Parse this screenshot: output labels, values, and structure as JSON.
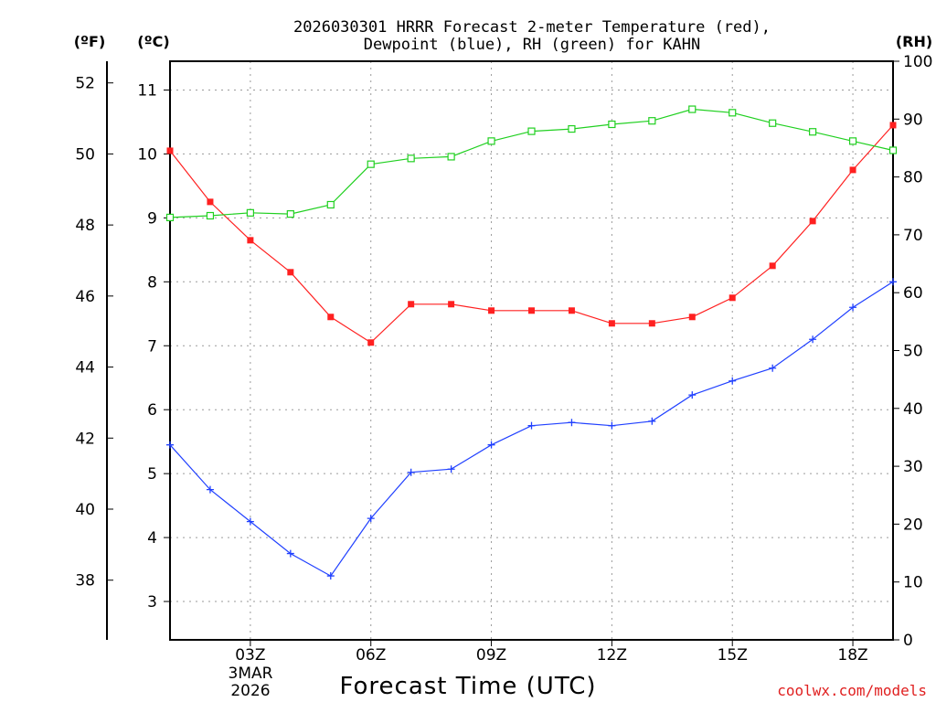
{
  "chart_data": {
    "type": "line",
    "title_line1": "2026030301 HRRR Forecast 2-meter Temperature (red),",
    "title_line2": "Dewpoint (blue), RH (green) for KAHN",
    "xlabel": "Forecast Time (UTC)",
    "x_hours": [
      1,
      2,
      3,
      4,
      5,
      6,
      7,
      8,
      9,
      10,
      11,
      12,
      13,
      14,
      15,
      16,
      17,
      18,
      19
    ],
    "xlim": [
      1,
      19
    ],
    "x_ticks": [
      {
        "hour": 3,
        "label": "03Z"
      },
      {
        "hour": 6,
        "label": "06Z"
      },
      {
        "hour": 9,
        "label": "09Z"
      },
      {
        "hour": 12,
        "label": "12Z"
      },
      {
        "hour": 15,
        "label": "15Z"
      },
      {
        "hour": 18,
        "label": "18Z"
      }
    ],
    "date_label_line1": "3MAR",
    "date_label_line2": "2026",
    "units": {
      "fahrenheit": "(ºF)",
      "celsius": "(ºC)",
      "rh": "(RH)"
    },
    "celsius_axis": {
      "range": [
        2.4,
        11.45
      ],
      "ticks": [
        3,
        4,
        5,
        6,
        7,
        8,
        9,
        10,
        11
      ]
    },
    "fahrenheit_axis": {
      "ticks": [
        38,
        40,
        42,
        44,
        46,
        48,
        50,
        52
      ]
    },
    "rh_axis": {
      "range": [
        0,
        100
      ],
      "ticks": [
        0,
        10,
        20,
        30,
        40,
        50,
        60,
        70,
        80,
        90,
        100
      ]
    },
    "grid": true,
    "series": [
      {
        "name": "2-meter Temperature",
        "color": "#ff2020",
        "axis": "celsius",
        "marker": "filled-square",
        "values": [
          10.05,
          9.25,
          8.65,
          8.15,
          7.45,
          7.05,
          7.65,
          7.65,
          7.55,
          7.55,
          7.55,
          7.35,
          7.35,
          7.45,
          7.75,
          8.25,
          8.95,
          9.75,
          10.45
        ]
      },
      {
        "name": "Dewpoint",
        "color": "#2040ff",
        "axis": "celsius",
        "marker": "plus",
        "values": [
          5.45,
          4.75,
          4.25,
          3.75,
          3.4,
          4.3,
          5.02,
          5.07,
          5.45,
          5.75,
          5.8,
          5.75,
          5.82,
          6.23,
          6.45,
          6.65,
          7.1,
          7.6,
          8.0
        ]
      },
      {
        "name": "RH",
        "color": "#20d020",
        "axis": "rh",
        "marker": "open-square",
        "values": [
          73,
          73.3,
          73.8,
          73.6,
          75.2,
          82.2,
          83.2,
          83.5,
          86.2,
          87.9,
          88.3,
          89.1,
          89.7,
          91.7,
          91.1,
          89.3,
          87.8,
          86.2,
          84.6
        ]
      }
    ],
    "credit": "coolwx.com/models",
    "credit_color": "#e02020"
  }
}
